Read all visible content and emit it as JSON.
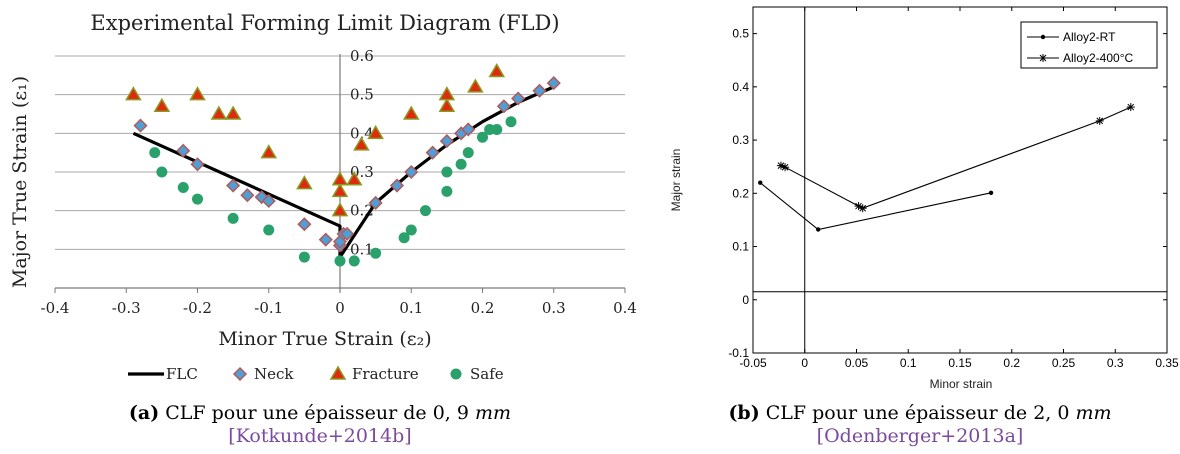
{
  "chart_data": [
    {
      "id": "a",
      "type": "scatter",
      "title": "Experimental Forming Limit Diagram (FLD)",
      "xlabel": "Minor True Strain (ε₂)",
      "ylabel": "Major True Strain (ε₁)",
      "xlim": [
        -0.4,
        0.4
      ],
      "ylim": [
        0,
        0.6
      ],
      "xticks": [
        -0.4,
        -0.3,
        -0.2,
        -0.1,
        0,
        0.1,
        0.2,
        0.3,
        0.4
      ],
      "yticks": [
        0.1,
        0.2,
        0.3,
        0.4,
        0.5,
        0.6
      ],
      "xtick_labels": [
        "-0.4",
        "-0.3",
        "-0.2",
        "-0.1",
        "0",
        "0.1",
        "0.2",
        "0.3",
        "0.4"
      ],
      "ytick_labels": [
        "0.1",
        "0.2",
        "0.3",
        "0.4",
        "0.5",
        "0.6"
      ],
      "grid": "horizontal",
      "legend_position": "bottom",
      "series": [
        {
          "name": "FLC",
          "kind": "line",
          "color": "#000000",
          "x": [
            -0.29,
            0.0,
            0.0,
            0.05,
            0.1,
            0.15,
            0.2,
            0.25,
            0.3
          ],
          "y": [
            0.4,
            0.16,
            0.08,
            0.22,
            0.3,
            0.37,
            0.43,
            0.48,
            0.52
          ]
        },
        {
          "name": "Neck",
          "kind": "diamond",
          "color": "#4f9fd6",
          "stroke": "#b05a5a",
          "x": [
            -0.28,
            -0.22,
            -0.2,
            -0.15,
            -0.13,
            -0.11,
            -0.1,
            -0.05,
            -0.02,
            0.0,
            0.0,
            0.005,
            0.01,
            0.05,
            0.08,
            0.1,
            0.13,
            0.15,
            0.17,
            0.18,
            0.23,
            0.25,
            0.28,
            0.3
          ],
          "y": [
            0.42,
            0.355,
            0.32,
            0.265,
            0.24,
            0.235,
            0.225,
            0.165,
            0.125,
            0.11,
            0.12,
            0.14,
            0.14,
            0.22,
            0.265,
            0.3,
            0.35,
            0.38,
            0.4,
            0.41,
            0.47,
            0.49,
            0.51,
            0.53
          ]
        },
        {
          "name": "Fracture",
          "kind": "triangle",
          "color": "#e02a10",
          "stroke": "#8a9a20",
          "x": [
            -0.29,
            -0.25,
            -0.2,
            -0.17,
            -0.15,
            -0.1,
            -0.05,
            0.0,
            0.0,
            0.0,
            0.02,
            0.03,
            0.05,
            0.1,
            0.15,
            0.15,
            0.19,
            0.22
          ],
          "y": [
            0.5,
            0.47,
            0.5,
            0.45,
            0.45,
            0.35,
            0.27,
            0.2,
            0.25,
            0.28,
            0.28,
            0.37,
            0.4,
            0.45,
            0.47,
            0.5,
            0.52,
            0.56
          ]
        },
        {
          "name": "Safe",
          "kind": "circle",
          "color": "#2aa06a",
          "x": [
            -0.26,
            -0.25,
            -0.22,
            -0.2,
            -0.15,
            -0.1,
            -0.05,
            0.0,
            0.02,
            0.05,
            0.09,
            0.1,
            0.12,
            0.15,
            0.15,
            0.17,
            0.18,
            0.2,
            0.21,
            0.22,
            0.24
          ],
          "y": [
            0.35,
            0.3,
            0.26,
            0.23,
            0.18,
            0.15,
            0.08,
            0.07,
            0.07,
            0.09,
            0.13,
            0.15,
            0.2,
            0.25,
            0.3,
            0.32,
            0.35,
            0.39,
            0.41,
            0.41,
            0.43
          ]
        }
      ]
    },
    {
      "id": "b",
      "type": "line",
      "title": "",
      "xlabel": "Minor strain",
      "ylabel": "Major strain",
      "xlim": [
        -0.05,
        0.35
      ],
      "ylim": [
        -0.1,
        0.55
      ],
      "xticks": [
        -0.05,
        0,
        0.05,
        0.1,
        0.15,
        0.2,
        0.25,
        0.3,
        0.35
      ],
      "yticks": [
        -0.1,
        0,
        0.1,
        0.2,
        0.3,
        0.4,
        0.5
      ],
      "xtick_labels": [
        "-0.05",
        "0",
        "0.05",
        "0.1",
        "0.15",
        "0.2",
        "0.25",
        "0.3",
        "0.35"
      ],
      "ytick_labels": [
        "-0.1",
        "0",
        "0.1",
        "0.2",
        "0.3",
        "0.4",
        "0.5"
      ],
      "grid": "off",
      "legend_position": "top-right",
      "series": [
        {
          "name": "Alloy2-RT",
          "marker": "dot",
          "color": "#000000",
          "x": [
            -0.043,
            0.013,
            0.18
          ],
          "y": [
            0.22,
            0.132,
            0.201
          ]
        },
        {
          "name": "Alloy2-400°C",
          "marker": "star",
          "color": "#000000",
          "x": [
            -0.023,
            -0.019,
            0.052,
            0.056,
            0.285,
            0.315
          ],
          "y": [
            0.252,
            0.249,
            0.176,
            0.172,
            0.336,
            0.362
          ]
        }
      ]
    }
  ],
  "captions": {
    "a": {
      "label": "(a)",
      "text": " CLF pour une épaisseur de 0, 9 ",
      "unit": "mm",
      "cite": "Kotkunde+2014b"
    },
    "b": {
      "label": "(b)",
      "text": " CLF pour une épaisseur de 2, 0 ",
      "unit": "mm",
      "cite": "Odenberger+2013a"
    }
  }
}
